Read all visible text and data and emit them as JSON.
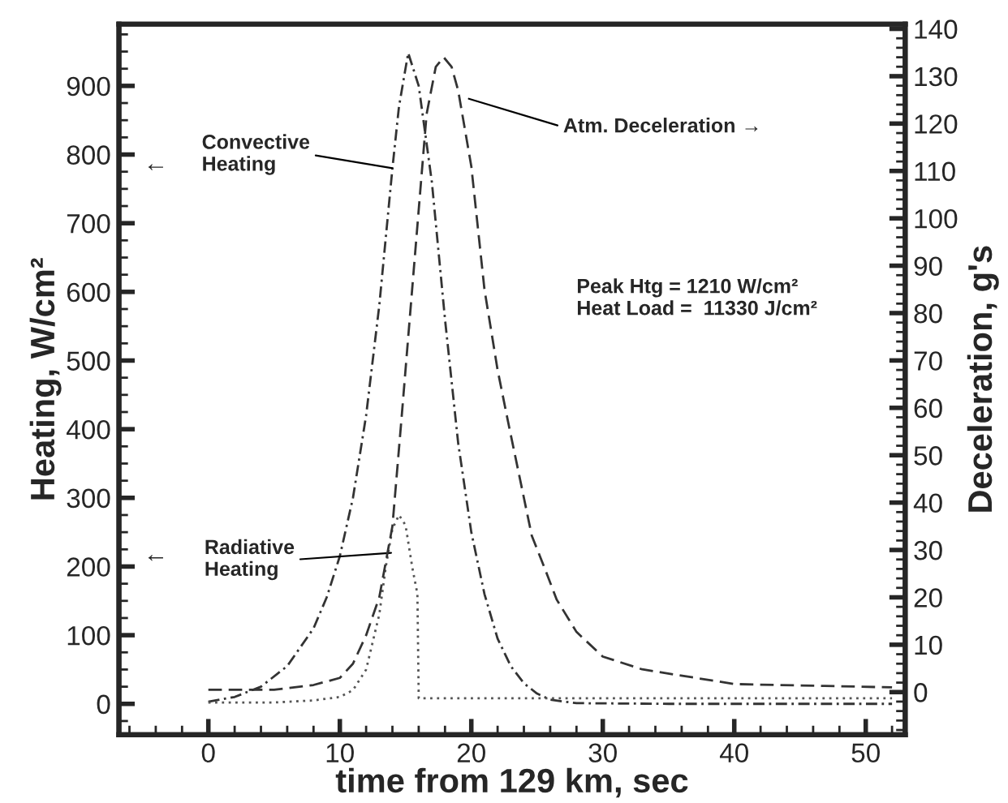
{
  "chart_data": {
    "type": "line",
    "xlabel": "time from 129 km, sec",
    "ylabel": "Heating, W/cm²",
    "y2label": "Deceleration, g's",
    "xlim": [
      -6.8,
      53
    ],
    "xticks": [
      0,
      10,
      20,
      30,
      40,
      50
    ],
    "ylim": [
      -45,
      990
    ],
    "yticks": [
      0,
      100,
      200,
      300,
      400,
      500,
      600,
      700,
      800,
      900
    ],
    "y2lim": [
      -9,
      141
    ],
    "y2ticks": [
      0,
      10,
      20,
      30,
      40,
      50,
      60,
      70,
      80,
      90,
      100,
      110,
      120,
      130,
      140
    ],
    "grid": false,
    "legend": false,
    "marker": "none",
    "series": [
      {
        "color": "#333333",
        "line_style": "dashdot",
        "x": [
          0,
          2,
          4,
          6,
          8,
          9,
          10,
          11,
          12,
          13,
          14,
          14.5,
          15.2,
          16,
          17,
          18,
          19,
          20,
          21,
          22,
          23,
          24,
          25,
          26,
          28,
          35,
          52
        ],
        "values": [
          3,
          10,
          25,
          55,
          110,
          155,
          215,
          300,
          420,
          580,
          780,
          870,
          948,
          900,
          760,
          560,
          380,
          250,
          160,
          95,
          55,
          30,
          15,
          6,
          1,
          0,
          0
        ]
      },
      {
        "color": "#555555",
        "line_style": "dotted",
        "x": [
          0,
          5,
          8,
          10,
          11,
          12,
          13,
          13.5,
          14,
          14.5,
          15,
          15.5,
          15.9,
          16,
          20,
          52
        ],
        "values": [
          2,
          2,
          5,
          10,
          20,
          50,
          130,
          200,
          255,
          275,
          260,
          200,
          160,
          8,
          8,
          8
        ]
      },
      {
        "color": "#333333",
        "line_style": "dashed",
        "axis": "y2",
        "x": [
          0,
          5,
          8,
          10,
          11,
          12,
          13,
          14,
          14.7,
          15.5,
          16.6,
          17.3,
          17.9,
          18.5,
          19,
          20,
          21,
          22,
          22.8,
          24.6,
          25.6,
          26.5,
          28,
          30,
          33,
          40,
          52
        ],
        "values": [
          0.5,
          0.5,
          1.5,
          3,
          6,
          12,
          20,
          35,
          58,
          85,
          122,
          132,
          134,
          132,
          127,
          111,
          85,
          68,
          57,
          33,
          26,
          19.5,
          12.7,
          7.5,
          4.8,
          1.7,
          1
        ]
      }
    ],
    "annotations": [
      {
        "text": "Convective\nHeating",
        "x": 14,
        "y": 780
      },
      {
        "text": "Radiative\nHeating",
        "x": 13.9,
        "y": 220
      },
      "Atm. Deceleration →",
      "←",
      "←",
      "Peak Htg = 1210 W/cm²\nHeat Load =  11330 J/cm²"
    ]
  }
}
